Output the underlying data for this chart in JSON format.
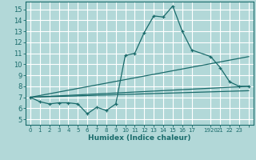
{
  "title": "",
  "xlabel": "Humidex (Indice chaleur)",
  "bg_color": "#b2d8d8",
  "grid_color": "#ffffff",
  "line_color": "#1a6b6b",
  "xlim": [
    -0.5,
    23.5
  ],
  "ylim": [
    4.5,
    15.7
  ],
  "xticks": [
    0,
    1,
    2,
    3,
    4,
    5,
    6,
    7,
    8,
    9,
    10,
    11,
    12,
    13,
    14,
    15,
    16,
    17,
    19,
    20,
    21,
    22,
    23
  ],
  "xtick_labels": [
    "0",
    "1",
    "2",
    "3",
    "4",
    "5",
    "6",
    "7",
    "8",
    "9",
    "10",
    "11",
    "12",
    "13",
    "14",
    "15",
    "16",
    "17",
    "1920",
    "21",
    "22",
    "23",
    ""
  ],
  "yticks": [
    5,
    6,
    7,
    8,
    9,
    10,
    11,
    12,
    13,
    14,
    15
  ],
  "line1_x": [
    0,
    1,
    2,
    3,
    4,
    5,
    6,
    7,
    8,
    9,
    10,
    11,
    12,
    13,
    14,
    15,
    16,
    17,
    19,
    20,
    21,
    22,
    23
  ],
  "line1_y": [
    7.0,
    6.6,
    6.4,
    6.5,
    6.5,
    6.4,
    5.5,
    6.1,
    5.8,
    6.4,
    10.8,
    11.0,
    12.9,
    14.4,
    14.3,
    15.3,
    13.0,
    11.3,
    10.7,
    9.7,
    8.4,
    8.0,
    8.0
  ],
  "line2_x": [
    0,
    23
  ],
  "line2_y": [
    7.0,
    8.0
  ],
  "line3_x": [
    0,
    23
  ],
  "line3_y": [
    7.0,
    7.6
  ],
  "line4_x": [
    0,
    23
  ],
  "line4_y": [
    7.0,
    10.7
  ]
}
